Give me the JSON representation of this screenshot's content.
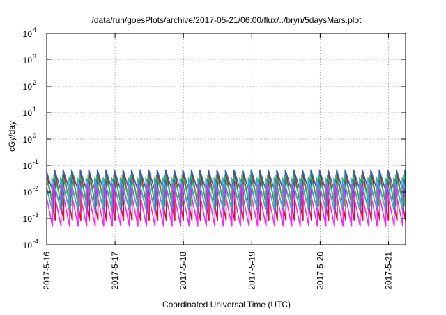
{
  "chart_data": {
    "type": "line",
    "title": "/data/run/goesPlots/archive/2017-05-21/06:00/flux/../bryn/5daysMars.plot",
    "xlabel": "Coordinated Universal Time (UTC)",
    "ylabel": "cGy/day",
    "yscale": "log",
    "ylim": [
      0.0001,
      10000
    ],
    "y_ticks": [
      {
        "value": 0.0001,
        "base": "10",
        "exp": "-4"
      },
      {
        "value": 0.001,
        "base": "10",
        "exp": "-3"
      },
      {
        "value": 0.01,
        "base": "10",
        "exp": "-2"
      },
      {
        "value": 0.1,
        "base": "10",
        "exp": "-1"
      },
      {
        "value": 1,
        "base": "10",
        "exp": "0"
      },
      {
        "value": 10,
        "base": "10",
        "exp": "1"
      },
      {
        "value": 100,
        "base": "10",
        "exp": "2"
      },
      {
        "value": 1000,
        "base": "10",
        "exp": "3"
      },
      {
        "value": 10000,
        "base": "10",
        "exp": "4"
      }
    ],
    "xlim": [
      "2017-05-16 00:00",
      "2017-05-21 06:00"
    ],
    "x_ticks": [
      "2017-5-16",
      "2017-5-17",
      "2017-5-18",
      "2017-5-19",
      "2017-5-20",
      "2017-5-21"
    ],
    "grid": true,
    "legend": "none",
    "sawtooth_period_hours": 3,
    "series": [
      {
        "color": "#cc1a1a",
        "peak": 0.055,
        "trough": 0.0008
      },
      {
        "color": "#2e5fcc",
        "peak": 0.07,
        "trough": 0.006
      },
      {
        "color": "#1fbf40",
        "peak": 0.045,
        "trough": 0.003
      },
      {
        "color": "#7f3fbf",
        "peak": 0.03,
        "trough": 0.0015
      },
      {
        "color": "#ff20ff",
        "peak": 0.02,
        "trough": 0.0005
      },
      {
        "color": "#20c0c0",
        "peak": 0.035,
        "trough": 0.0025
      }
    ]
  }
}
